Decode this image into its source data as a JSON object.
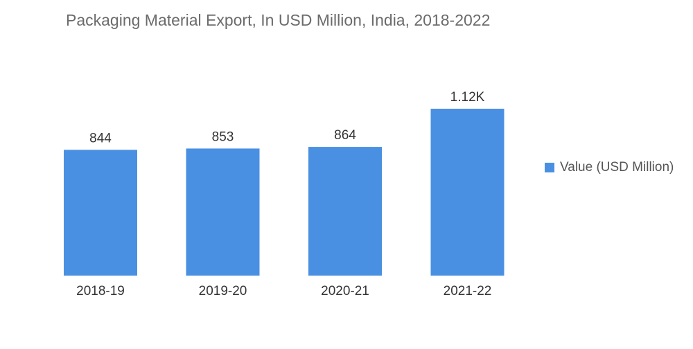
{
  "chart_data": {
    "type": "bar",
    "title": "Packaging Material Export, In USD Million, India, 2018-2022",
    "categories": [
      "2018-19",
      "2019-20",
      "2020-21",
      "2021-22"
    ],
    "series": [
      {
        "name": "Value (USD Million)",
        "values": [
          844,
          853,
          864,
          1120
        ],
        "labels": [
          "844",
          "853",
          "864",
          "1.12K"
        ],
        "color": "#4a90e2"
      }
    ],
    "xlabel": "",
    "ylabel": "",
    "ylim": [
      0,
      1120
    ],
    "grid": false,
    "legend": "right"
  }
}
